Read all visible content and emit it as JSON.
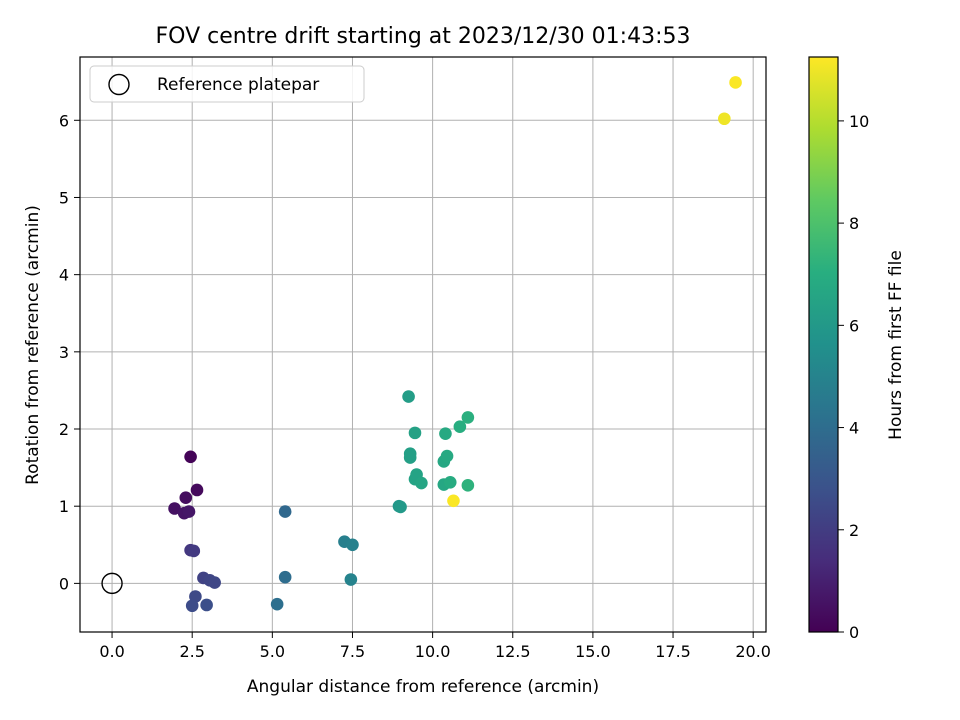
{
  "chart_data": {
    "type": "scatter",
    "title": "FOV centre drift starting at 2023/12/30 01:43:53",
    "xlabel": "Angular distance from reference (arcmin)",
    "ylabel": "Rotation from reference (arcmin)",
    "colorbar_label": "Hours from first FF file",
    "colormap": "viridis",
    "xlim": [
      -1.0,
      20.4
    ],
    "ylim": [
      -0.63,
      6.82
    ],
    "clim": [
      0,
      11.25
    ],
    "xticks": [
      "0.0",
      "2.5",
      "5.0",
      "7.5",
      "10.0",
      "12.5",
      "15.0",
      "17.5",
      "20.0"
    ],
    "yticks": [
      "0",
      "1",
      "2",
      "3",
      "4",
      "5",
      "6"
    ],
    "colorbar_ticks": [
      "0",
      "2",
      "4",
      "6",
      "8",
      "10"
    ],
    "grid": true,
    "legend": {
      "placement": "top-left",
      "entries": [
        {
          "label": "Reference platepar",
          "marker": "open-circle"
        }
      ]
    },
    "reference_point": {
      "x": 0.0,
      "y": 0.0
    },
    "series": [
      {
        "points": [
          {
            "x": 2.45,
            "y": 1.64,
            "c": 0.1
          },
          {
            "x": 2.65,
            "y": 1.21,
            "c": 0.3
          },
          {
            "x": 2.3,
            "y": 1.11,
            "c": 0.4
          },
          {
            "x": 1.95,
            "y": 0.97,
            "c": 0.5
          },
          {
            "x": 2.25,
            "y": 0.91,
            "c": 0.6
          },
          {
            "x": 2.4,
            "y": 0.93,
            "c": 0.7
          },
          {
            "x": 2.45,
            "y": 0.43,
            "c": 1.8
          },
          {
            "x": 2.55,
            "y": 0.42,
            "c": 1.9
          },
          {
            "x": 2.85,
            "y": 0.07,
            "c": 2.2
          },
          {
            "x": 3.05,
            "y": 0.04,
            "c": 2.3
          },
          {
            "x": 3.2,
            "y": 0.01,
            "c": 2.4
          },
          {
            "x": 2.6,
            "y": -0.17,
            "c": 2.5
          },
          {
            "x": 2.5,
            "y": -0.29,
            "c": 2.6
          },
          {
            "x": 2.95,
            "y": -0.28,
            "c": 2.7
          },
          {
            "x": 5.4,
            "y": 0.93,
            "c": 3.8
          },
          {
            "x": 5.4,
            "y": 0.08,
            "c": 4.0
          },
          {
            "x": 5.15,
            "y": -0.27,
            "c": 4.1
          },
          {
            "x": 7.25,
            "y": 0.54,
            "c": 4.8
          },
          {
            "x": 7.5,
            "y": 0.5,
            "c": 4.9
          },
          {
            "x": 7.45,
            "y": 0.05,
            "c": 5.0
          },
          {
            "x": 8.95,
            "y": 1.0,
            "c": 5.9
          },
          {
            "x": 9.0,
            "y": 0.99,
            "c": 6.0
          },
          {
            "x": 9.25,
            "y": 2.42,
            "c": 6.2
          },
          {
            "x": 9.3,
            "y": 1.63,
            "c": 6.3
          },
          {
            "x": 9.3,
            "y": 1.68,
            "c": 6.3
          },
          {
            "x": 9.45,
            "y": 1.95,
            "c": 6.4
          },
          {
            "x": 9.45,
            "y": 1.35,
            "c": 6.5
          },
          {
            "x": 9.5,
            "y": 1.41,
            "c": 6.5
          },
          {
            "x": 9.65,
            "y": 1.3,
            "c": 6.6
          },
          {
            "x": 10.35,
            "y": 1.28,
            "c": 6.7
          },
          {
            "x": 10.35,
            "y": 1.58,
            "c": 6.7
          },
          {
            "x": 10.4,
            "y": 1.94,
            "c": 6.8
          },
          {
            "x": 10.45,
            "y": 1.65,
            "c": 6.8
          },
          {
            "x": 10.55,
            "y": 1.31,
            "c": 6.9
          },
          {
            "x": 10.85,
            "y": 2.03,
            "c": 7.0
          },
          {
            "x": 11.1,
            "y": 2.15,
            "c": 7.1
          },
          {
            "x": 11.1,
            "y": 1.27,
            "c": 7.2
          },
          {
            "x": 10.65,
            "y": 1.07,
            "c": 11.2
          },
          {
            "x": 19.1,
            "y": 6.02,
            "c": 11.0
          },
          {
            "x": 19.45,
            "y": 6.49,
            "c": 11.2
          }
        ]
      }
    ]
  }
}
